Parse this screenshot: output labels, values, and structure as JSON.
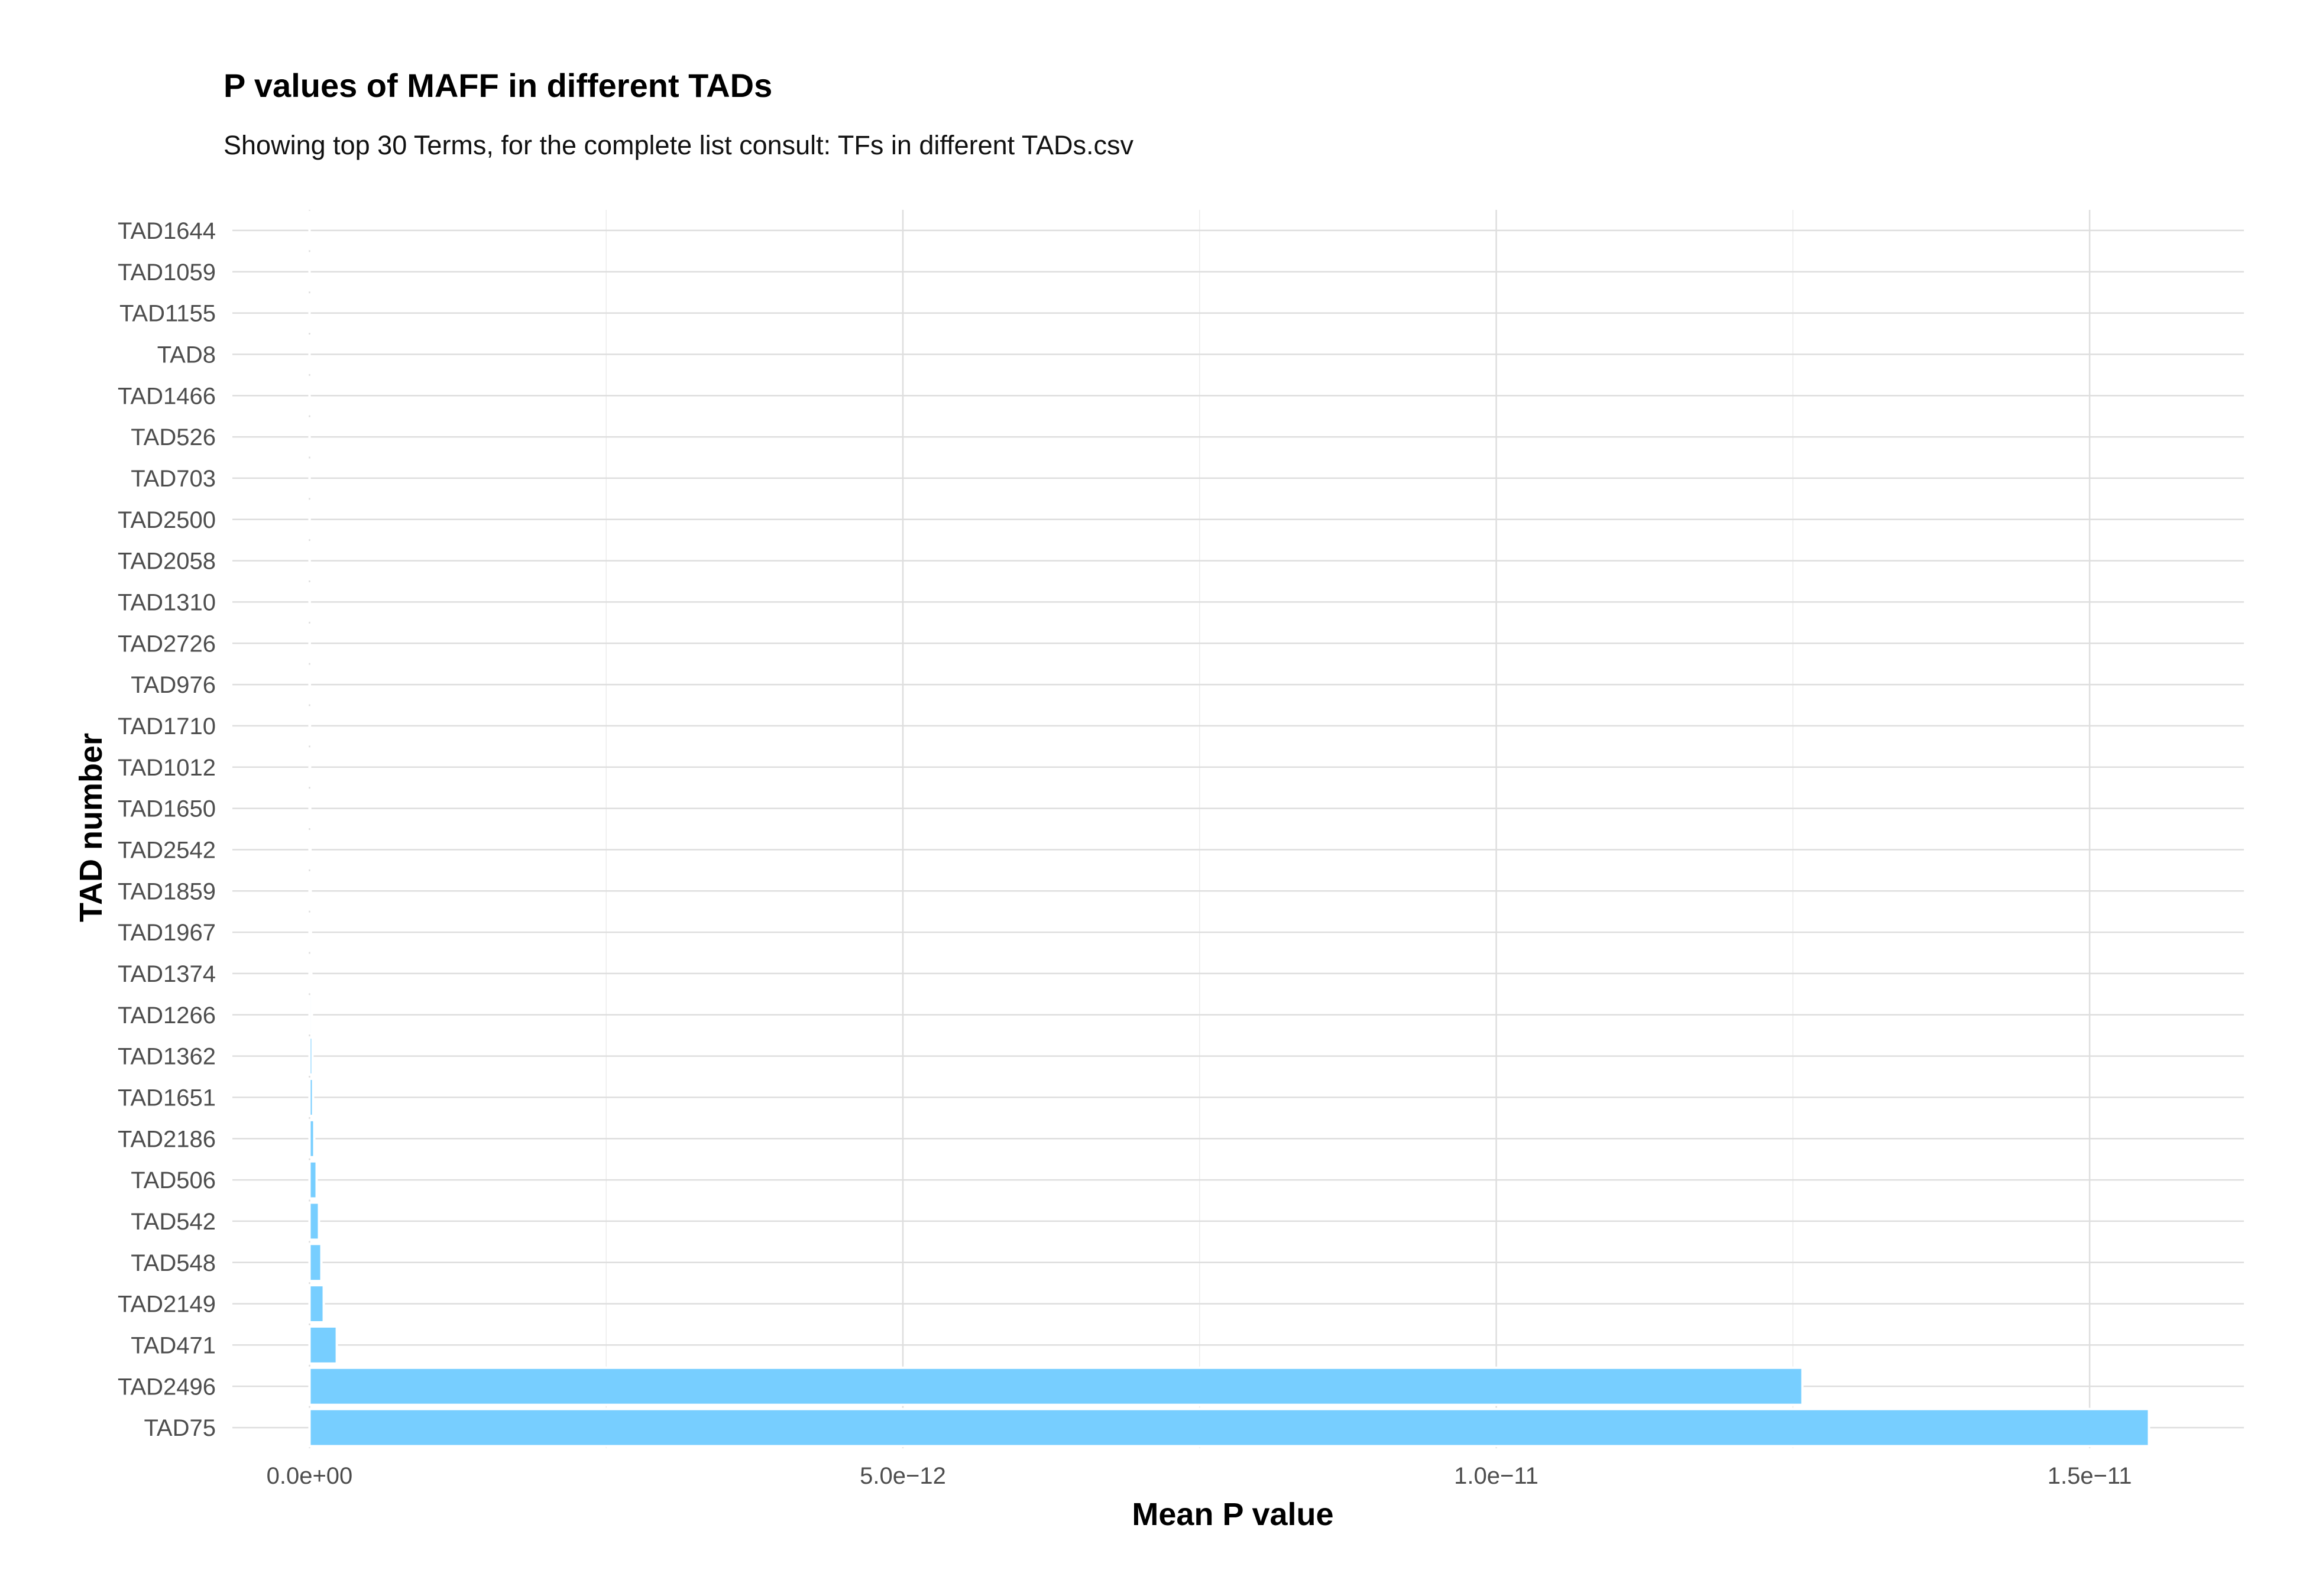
{
  "chart_data": {
    "type": "bar",
    "orientation": "horizontal",
    "title": "P values of MAFF in different TADs",
    "subtitle": "Showing top 30 Terms, for the complete list consult: TFs in different TADs.csv",
    "xlabel": "Mean P value",
    "ylabel": "TAD number",
    "xlim": [
      -6.5e-13,
      1.63e-11
    ],
    "xticks": [
      {
        "value": 0,
        "label": "0.0e+00"
      },
      {
        "value": 5e-12,
        "label": "5.0e−12"
      },
      {
        "value": 1e-11,
        "label": "1.0e−11"
      },
      {
        "value": 1.5e-11,
        "label": "1.5e−11"
      }
    ],
    "xminor": [
      2.5e-12,
      7.5e-12,
      1.25e-11
    ],
    "grid": true,
    "bar_color": "#77ceff",
    "categories": [
      "TAD1644",
      "TAD1059",
      "TAD1155",
      "TAD8",
      "TAD1466",
      "TAD526",
      "TAD703",
      "TAD2500",
      "TAD2058",
      "TAD1310",
      "TAD2726",
      "TAD976",
      "TAD1710",
      "TAD1012",
      "TAD1650",
      "TAD2542",
      "TAD1859",
      "TAD1967",
      "TAD1374",
      "TAD1266",
      "TAD1362",
      "TAD1651",
      "TAD2186",
      "TAD506",
      "TAD542",
      "TAD548",
      "TAD2149",
      "TAD471",
      "TAD2496",
      "TAD75"
    ],
    "values": [
      1e-16,
      2e-16,
      3e-16,
      4e-16,
      5e-16,
      7e-16,
      9e-16,
      1.2e-15,
      1.5e-15,
      2e-15,
      2.5e-15,
      3e-15,
      4e-15,
      5e-15,
      6e-15,
      8e-15,
      1e-14,
      1.2e-14,
      1.5e-14,
      2e-14,
      2.5e-14,
      3e-14,
      4e-14,
      6e-14,
      8e-14,
      1e-13,
      1.2e-13,
      2.3e-13,
      1.258e-11,
      1.55e-11
    ]
  }
}
